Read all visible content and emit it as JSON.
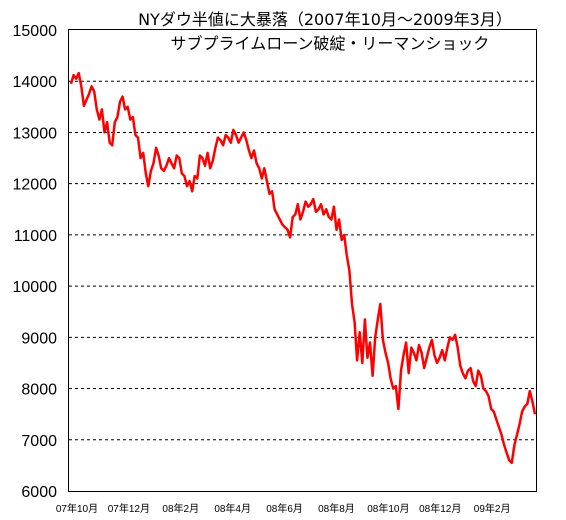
{
  "chart_data": {
    "type": "line",
    "title": "NYダウ半値に大暴落（2007年10月～2009年3月）",
    "subtitle": "サブプライムローン破綻・リーマンショック",
    "xlabel": "",
    "ylabel": "",
    "ylim": [
      6000,
      15000
    ],
    "y_ticks": [
      "6000",
      "7000",
      "8000",
      "9000",
      "10000",
      "11000",
      "12000",
      "13000",
      "14000",
      "15000"
    ],
    "x_ticks": [
      "07年10月",
      "07年12月",
      "08年2月",
      "08年4月",
      "08年6月",
      "08年8月",
      "08年10月",
      "08年12月",
      "09年2月"
    ],
    "grid": "horizontal dashed",
    "line_color": "#ff0000",
    "series": [
      {
        "values": [
          13950,
          14120,
          14050,
          14160,
          13900,
          13520,
          13640,
          13750,
          13900,
          13800,
          13450,
          13250,
          13450,
          13000,
          13200,
          12800,
          12750,
          13200,
          13300,
          13600,
          13700,
          13450,
          13500,
          13250,
          13300,
          12950,
          12900,
          12500,
          12600,
          12200,
          11950,
          12250,
          12400,
          12700,
          12550,
          12300,
          12250,
          12350,
          12500,
          12400,
          12300,
          12550,
          12500,
          12200,
          12150,
          11950,
          12050,
          11850,
          12150,
          12100,
          12550,
          12500,
          12350,
          12600,
          12300,
          12450,
          12700,
          12900,
          12850,
          12750,
          12950,
          12900,
          12800,
          13050,
          12950,
          12800,
          12900,
          13000,
          12850,
          12650,
          12500,
          12650,
          12400,
          12300,
          12100,
          12300,
          12050,
          11800,
          11850,
          11500,
          11400,
          11300,
          11200,
          11150,
          11100,
          10950,
          11350,
          11400,
          11600,
          11300,
          11450,
          11650,
          11550,
          11600,
          11700,
          11450,
          11500,
          11600,
          11400,
          11500,
          11350,
          11300,
          11550,
          11100,
          11300,
          10900,
          11000,
          10600,
          10300,
          9650,
          9300,
          8550,
          9100,
          8500,
          9350,
          8600,
          8900,
          8250,
          9000,
          9350,
          9650,
          8950,
          8700,
          8500,
          8200,
          8000,
          8050,
          7600,
          8350,
          8650,
          8900,
          8300,
          8800,
          8700,
          8550,
          8850,
          8700,
          8400,
          8600,
          8800,
          8950,
          8650,
          8500,
          8600,
          8750,
          8550,
          8800,
          9000,
          8950,
          9050,
          8800,
          8450,
          8300,
          8200,
          8350,
          8400,
          8150,
          8050,
          8350,
          8250,
          8000,
          7950,
          7850,
          7600,
          7550,
          7400,
          7250,
          7100,
          6900,
          6750,
          6600,
          6550,
          6900,
          7100,
          7300,
          7550,
          7650,
          7700,
          7950,
          7750,
          7500
        ]
      }
    ]
  }
}
